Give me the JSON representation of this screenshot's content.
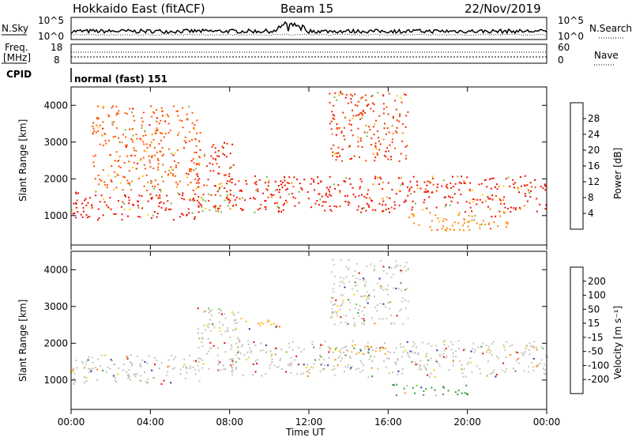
{
  "header": {
    "station": "Hokkaido East (fitACF)",
    "beam": "Beam 15",
    "date": "22/Nov/2019"
  },
  "top_panels": {
    "nsky_label": "N.Sky",
    "nsky_ticks": [
      "10^5",
      "10^0"
    ],
    "nsearch_label": "N.Search",
    "nsearch_ticks": [
      "10^5",
      "10^0"
    ],
    "freq_label": "Freq.",
    "freq_unit": "[MHz]",
    "freq_ticks": [
      "18",
      "8"
    ],
    "nave_label": "Nave",
    "nave_ticks": [
      "60",
      "0"
    ],
    "cpid_label": "CPID",
    "cpid_text": "normal (fast) 151"
  },
  "chart_data": [
    {
      "type": "heatmap",
      "name": "power",
      "ylabel": "Slant Range [km]",
      "xlabel": "Time UT",
      "x_ticks": [
        "00:00",
        "04:00",
        "08:00",
        "12:00",
        "16:00",
        "20:00",
        "00:00"
      ],
      "y_ticks": [
        "1000",
        "2000",
        "3000",
        "4000"
      ],
      "ylim": [
        200,
        4500
      ],
      "colorbar_label": "Power [dB]",
      "colorbar_ticks": [
        "28",
        "24",
        "20",
        "16",
        "12",
        "8",
        "4"
      ],
      "colorbar_colors": [
        "#ee0000",
        "#ff4400",
        "#ff8800",
        "#ffcc00",
        "#cccc22",
        "#77bb44",
        "#449966",
        "#336688",
        "#3344aa",
        "#0000ff"
      ],
      "bands": [
        {
          "t0": 0.0,
          "t1": 6.5,
          "r0": 900,
          "r1": 1700,
          "color": "#ee1100"
        },
        {
          "t0": 6.3,
          "t1": 8.2,
          "r0": 1200,
          "r1": 3000,
          "color": "#ee2200"
        },
        {
          "t0": 8.0,
          "t1": 24.0,
          "r0": 1100,
          "r1": 2100,
          "color": "#ee1100"
        },
        {
          "t0": 13.0,
          "t1": 17.0,
          "r0": 2500,
          "r1": 4400,
          "color": "#ee3300"
        },
        {
          "t0": 1.0,
          "t1": 6.5,
          "r0": 1700,
          "r1": 4000,
          "color": "#ff5500"
        },
        {
          "t0": 17.0,
          "t1": 22.0,
          "r0": 600,
          "r1": 1100,
          "color": "#ff8800"
        },
        {
          "t0": 6.5,
          "t1": 8.0,
          "r0": 1100,
          "r1": 1600,
          "color": "#77bb44"
        }
      ]
    },
    {
      "type": "heatmap",
      "name": "velocity",
      "ylabel": "Slant Range [km]",
      "xlabel": "Time UT",
      "x_ticks": [
        "00:00",
        "04:00",
        "08:00",
        "12:00",
        "16:00",
        "20:00",
        "00:00"
      ],
      "y_ticks": [
        "1000",
        "2000",
        "3000",
        "4000"
      ],
      "ylim": [
        200,
        4500
      ],
      "colorbar_label": "Velocity [m s⁻¹]",
      "colorbar_ticks": [
        "200",
        "100",
        "50",
        "15",
        "-15",
        "-50",
        "-100",
        "-200"
      ],
      "colorbar_colors": [
        "#2233aa",
        "#336644",
        "#449933",
        "#66cc33",
        "#bbbbbb",
        "#ffcc00",
        "#ff8800",
        "#ff4400",
        "#ee0000"
      ],
      "bands": [
        {
          "t0": 0.0,
          "t1": 6.5,
          "r0": 900,
          "r1": 1700,
          "color": "#c4c4bc"
        },
        {
          "t0": 6.3,
          "t1": 8.5,
          "r0": 1200,
          "r1": 3000,
          "color": "#c4c4bc"
        },
        {
          "t0": 8.0,
          "t1": 24.0,
          "r0": 1100,
          "r1": 2100,
          "color": "#c4c4bc"
        },
        {
          "t0": 13.0,
          "t1": 17.0,
          "r0": 2500,
          "r1": 4300,
          "color": "#c8c8bc"
        },
        {
          "t0": 16.0,
          "t1": 20.0,
          "r0": 600,
          "r1": 900,
          "color": "#339944"
        },
        {
          "t0": 8.5,
          "t1": 10.5,
          "r0": 2400,
          "r1": 2700,
          "color": "#ffbb22"
        },
        {
          "t0": 14.0,
          "t1": 16.0,
          "r0": 1700,
          "r1": 2000,
          "color": "#ffaa22"
        }
      ]
    }
  ]
}
